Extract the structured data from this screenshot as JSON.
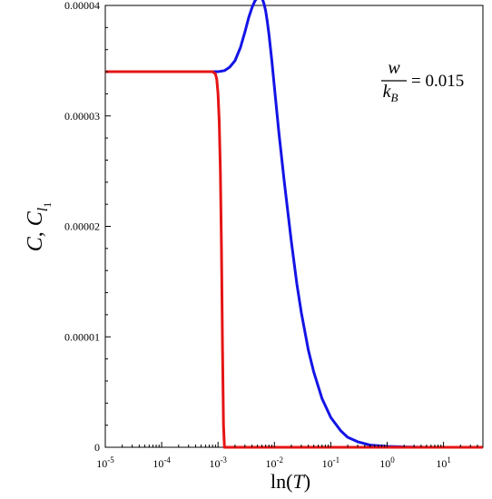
{
  "chart_data": {
    "type": "line",
    "xlabel": {
      "fn": "ln",
      "var": "T"
    },
    "ylabel": {
      "c1": "C",
      "c2": "C",
      "sub": "l",
      "subsub": "1"
    },
    "x_scale": "log",
    "xlim": [
      1e-05,
      50
    ],
    "ylim": [
      0,
      4e-05
    ],
    "x_ticks": [
      {
        "value": 1e-05,
        "base": "10",
        "exp": "-5"
      },
      {
        "value": 0.0001,
        "base": "10",
        "exp": "-4"
      },
      {
        "value": 0.001,
        "base": "10",
        "exp": "-3"
      },
      {
        "value": 0.01,
        "base": "10",
        "exp": "-2"
      },
      {
        "value": 0.1,
        "base": "10",
        "exp": "-1"
      },
      {
        "value": 1,
        "base": "10",
        "exp": "0"
      },
      {
        "value": 10,
        "base": "10",
        "exp": "1"
      }
    ],
    "y_ticks": [
      {
        "value": 0,
        "label": "0"
      },
      {
        "value": 1e-05,
        "label": "0.00001"
      },
      {
        "value": 2e-05,
        "label": "0.00002"
      },
      {
        "value": 3e-05,
        "label": "0.00003"
      },
      {
        "value": 4e-05,
        "label": "0.00004"
      }
    ],
    "annotation": {
      "num": "w",
      "den": "k",
      "den_sub": "B",
      "rhs": "= 0.015"
    },
    "grid": false,
    "series": [
      {
        "color": "#1414e6",
        "x": [
          1e-05,
          0.0001,
          0.0006,
          0.001,
          0.0013,
          0.0016,
          0.002,
          0.0025,
          0.003,
          0.0035,
          0.004,
          0.0045,
          0.005,
          0.0055,
          0.006,
          0.0065,
          0.007,
          0.0075,
          0.008,
          0.009,
          0.01,
          0.012,
          0.015,
          0.02,
          0.025,
          0.03,
          0.04,
          0.05,
          0.07,
          0.1,
          0.15,
          0.2,
          0.3,
          0.5,
          1,
          2,
          5,
          10,
          50
        ],
        "y": [
          3.4e-05,
          3.4e-05,
          3.4e-05,
          3.4e-05,
          3.41e-05,
          3.44e-05,
          3.5e-05,
          3.62e-05,
          3.76e-05,
          3.89e-05,
          3.98e-05,
          4.04e-05,
          4.07e-05,
          4.08e-05,
          4.07e-05,
          4.02e-05,
          3.95e-05,
          3.85e-05,
          3.74e-05,
          3.5e-05,
          3.26e-05,
          2.85e-05,
          2.4e-05,
          1.86e-05,
          1.48e-05,
          1.22e-05,
          8.8e-06,
          6.8e-06,
          4.4e-06,
          2.7e-06,
          1.5e-06,
          9e-07,
          5e-07,
          2e-07,
          8e-08,
          3e-08,
          5e-09,
          1e-09,
          0
        ]
      },
      {
        "color": "#e61414",
        "x": [
          1e-05,
          0.0005,
          0.0008,
          0.0009,
          0.00095,
          0.001,
          0.00105,
          0.0011,
          0.00115,
          0.0012,
          0.00125,
          0.0013,
          50
        ],
        "y": [
          3.4e-05,
          3.4e-05,
          3.4e-05,
          3.38e-05,
          3.33e-05,
          3.2e-05,
          2.95e-05,
          2.5e-05,
          1.8e-05,
          9e-06,
          2e-06,
          0,
          0
        ]
      }
    ]
  }
}
